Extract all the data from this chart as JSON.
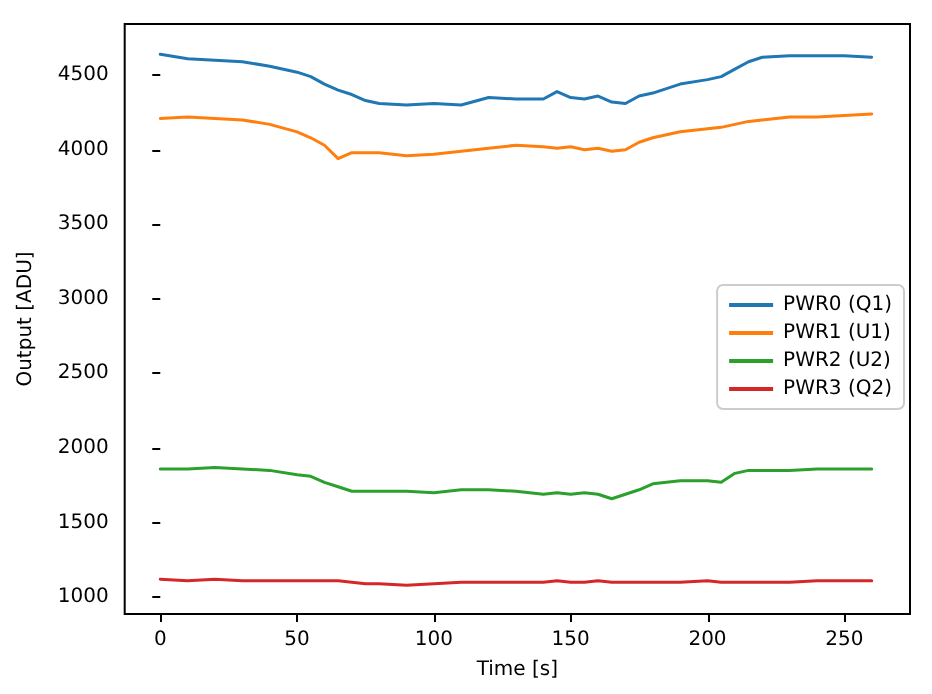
{
  "chart_data": {
    "type": "line",
    "xlabel": "Time [s]",
    "ylabel": "Output [ADU]",
    "x": [
      0,
      10,
      20,
      30,
      40,
      50,
      55,
      60,
      65,
      70,
      75,
      80,
      90,
      100,
      110,
      120,
      130,
      140,
      145,
      150,
      155,
      160,
      165,
      170,
      175,
      180,
      190,
      200,
      205,
      210,
      215,
      220,
      230,
      240,
      250,
      260
    ],
    "series": [
      {
        "name": "PWR0 (Q1)",
        "color": "#1f77b4",
        "values": [
          4640,
          4610,
          4600,
          4590,
          4560,
          4520,
          4490,
          4440,
          4400,
          4370,
          4330,
          4310,
          4300,
          4310,
          4300,
          4350,
          4340,
          4340,
          4390,
          4350,
          4340,
          4360,
          4320,
          4310,
          4360,
          4380,
          4440,
          4470,
          4490,
          4540,
          4590,
          4620,
          4630,
          4630,
          4630,
          4620
        ]
      },
      {
        "name": "PWR1 (U1)",
        "color": "#ff7f0e",
        "values": [
          4210,
          4220,
          4210,
          4200,
          4170,
          4120,
          4080,
          4030,
          3940,
          3980,
          3980,
          3980,
          3960,
          3970,
          3990,
          4010,
          4030,
          4020,
          4010,
          4020,
          4000,
          4010,
          3990,
          4000,
          4050,
          4080,
          4120,
          4140,
          4150,
          4170,
          4190,
          4200,
          4220,
          4220,
          4230,
          4240
        ]
      },
      {
        "name": "PWR2 (U2)",
        "color": "#2ca02c",
        "values": [
          1860,
          1860,
          1870,
          1860,
          1850,
          1820,
          1810,
          1770,
          1740,
          1710,
          1710,
          1710,
          1710,
          1700,
          1720,
          1720,
          1710,
          1690,
          1700,
          1690,
          1700,
          1690,
          1660,
          1690,
          1720,
          1760,
          1780,
          1780,
          1770,
          1830,
          1850,
          1850,
          1850,
          1860,
          1860,
          1860
        ]
      },
      {
        "name": "PWR3 (Q2)",
        "color": "#d62728",
        "values": [
          1120,
          1110,
          1120,
          1110,
          1110,
          1110,
          1110,
          1110,
          1110,
          1100,
          1090,
          1090,
          1080,
          1090,
          1100,
          1100,
          1100,
          1100,
          1110,
          1100,
          1100,
          1110,
          1100,
          1100,
          1100,
          1100,
          1100,
          1110,
          1100,
          1100,
          1100,
          1100,
          1100,
          1110,
          1110,
          1110
        ]
      }
    ],
    "xlim": [
      -13,
      274
    ],
    "ylim": [
      887,
      4843
    ],
    "xticks": [
      0,
      50,
      100,
      150,
      200,
      250
    ],
    "yticks": [
      1000,
      1500,
      2000,
      2500,
      3000,
      3500,
      4000,
      4500
    ],
    "legend": "right",
    "grid": false,
    "marker": "none",
    "line_style": "solid"
  }
}
